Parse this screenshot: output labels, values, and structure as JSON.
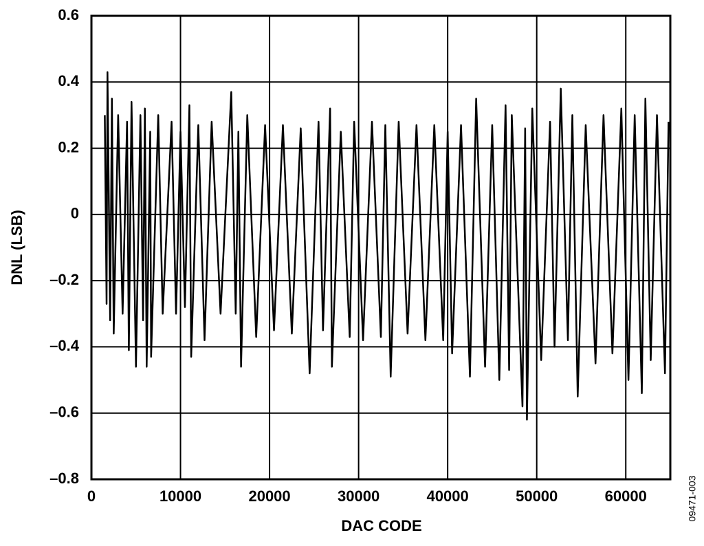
{
  "chart_data": {
    "type": "line",
    "xlabel": "DAC CODE",
    "ylabel": "DNL (LSB)",
    "figure_id": "09471-003",
    "xlim": [
      0,
      65000
    ],
    "ylim": [
      -0.8,
      0.6
    ],
    "xticks": [
      0,
      10000,
      20000,
      30000,
      40000,
      50000,
      60000
    ],
    "yticks": [
      {
        "value": -0.8,
        "label": "–0.8"
      },
      {
        "value": -0.6,
        "label": "–0.6"
      },
      {
        "value": -0.4,
        "label": "–0.4"
      },
      {
        "value": -0.2,
        "label": "–0.2"
      },
      0,
      0.2,
      0.4,
      0.6
    ],
    "grid": true,
    "x": [
      1500,
      1700,
      1800,
      2100,
      2300,
      2500,
      3000,
      3500,
      4000,
      4200,
      4500,
      5000,
      5500,
      5800,
      6000,
      6200,
      6600,
      6700,
      7500,
      8000,
      9000,
      9500,
      10000,
      10500,
      11000,
      11200,
      12000,
      12700,
      13500,
      14500,
      15700,
      16200,
      16500,
      16800,
      17500,
      18500,
      19500,
      20500,
      21500,
      22500,
      23500,
      24500,
      25500,
      26000,
      26800,
      27000,
      28000,
      29000,
      29500,
      30500,
      31500,
      32500,
      33000,
      33600,
      34500,
      35500,
      36500,
      37500,
      38500,
      39500,
      40000,
      40500,
      41500,
      42500,
      43200,
      44200,
      45000,
      45800,
      46500,
      46900,
      47200,
      48400,
      48700,
      48900,
      49500,
      50500,
      51500,
      52000,
      52700,
      53500,
      54000,
      54600,
      55500,
      56600,
      57500,
      58500,
      59500,
      60300,
      61000,
      61800,
      62200,
      62800,
      63500,
      64400,
      64800
    ],
    "series": [
      {
        "color": "#000000",
        "values": [
          0.3,
          -0.27,
          0.43,
          -0.32,
          0.35,
          -0.36,
          0.3,
          -0.3,
          0.28,
          -0.41,
          0.34,
          -0.46,
          0.3,
          -0.32,
          0.32,
          -0.46,
          0.25,
          -0.43,
          0.3,
          -0.3,
          0.28,
          -0.3,
          0.25,
          -0.28,
          0.33,
          -0.43,
          0.27,
          -0.38,
          0.28,
          -0.3,
          0.37,
          -0.3,
          0.25,
          -0.46,
          0.3,
          -0.37,
          0.27,
          -0.35,
          0.27,
          -0.36,
          0.26,
          -0.48,
          0.28,
          -0.35,
          0.32,
          -0.46,
          0.25,
          -0.37,
          0.28,
          -0.38,
          0.28,
          -0.37,
          0.27,
          -0.49,
          0.28,
          -0.36,
          0.27,
          -0.38,
          0.27,
          -0.38,
          0.25,
          -0.42,
          0.27,
          -0.49,
          0.35,
          -0.46,
          0.27,
          -0.5,
          0.33,
          -0.47,
          0.3,
          -0.58,
          0.26,
          -0.62,
          0.32,
          -0.44,
          0.28,
          -0.4,
          0.38,
          -0.38,
          0.3,
          -0.55,
          0.27,
          -0.45,
          0.3,
          -0.42,
          0.32,
          -0.5,
          0.3,
          -0.54,
          0.35,
          -0.44,
          0.3,
          -0.48,
          0.28
        ]
      }
    ]
  }
}
